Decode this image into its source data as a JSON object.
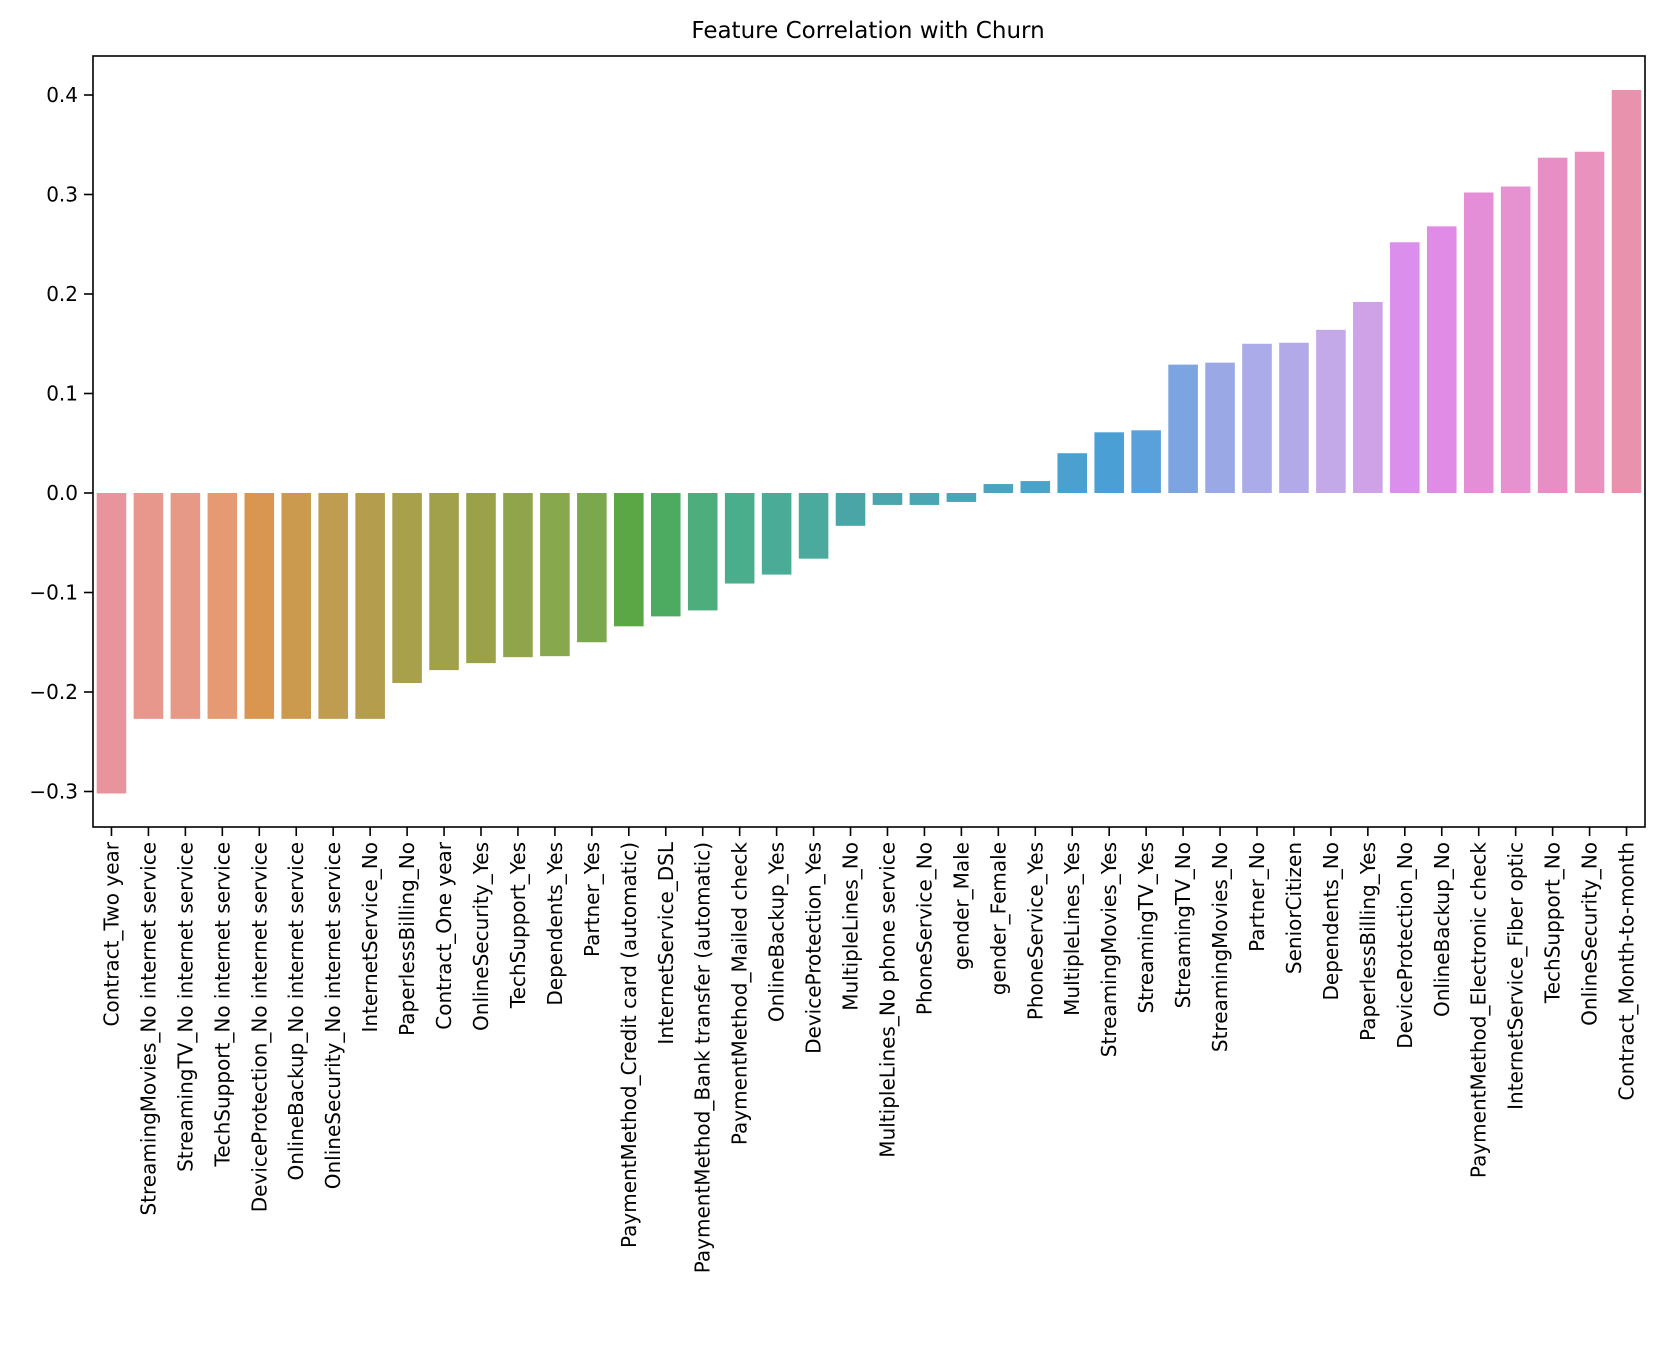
{
  "chart_data": {
    "type": "bar",
    "title": "Feature Correlation with Churn",
    "xlabel": "",
    "ylabel": "",
    "ylim": [
      -0.34,
      0.4
    ],
    "yticks": [
      {
        "value": -0.3,
        "label": "−0.3"
      },
      {
        "value": -0.2,
        "label": "−0.2"
      },
      {
        "value": -0.1,
        "label": "−0.1"
      },
      {
        "value": 0.0,
        "label": "0.0"
      },
      {
        "value": 0.1,
        "label": "0.1"
      },
      {
        "value": 0.2,
        "label": "0.2"
      },
      {
        "value": 0.3,
        "label": "0.3"
      },
      {
        "value": 0.4,
        "label": "0.4"
      }
    ],
    "grid": false,
    "legend": "none",
    "categories": [
      "Contract_Two year",
      "StreamingMovies_No internet service",
      "StreamingTV_No internet service",
      "TechSupport_No internet service",
      "DeviceProtection_No internet service",
      "OnlineBackup_No internet service",
      "OnlineSecurity_No internet service",
      "InternetService_No",
      "PaperlessBilling_No",
      "Contract_One year",
      "OnlineSecurity_Yes",
      "TechSupport_Yes",
      "Dependents_Yes",
      "Partner_Yes",
      "PaymentMethod_Credit card (automatic)",
      "InternetService_DSL",
      "PaymentMethod_Bank transfer (automatic)",
      "PaymentMethod_Mailed check",
      "OnlineBackup_Yes",
      "DeviceProtection_Yes",
      "MultipleLines_No",
      "MultipleLines_No phone service",
      "PhoneService_No",
      "gender_Male",
      "gender_Female",
      "PhoneService_Yes",
      "MultipleLines_Yes",
      "StreamingMovies_Yes",
      "StreamingTV_Yes",
      "StreamingTV_No",
      "StreamingMovies_No",
      "Partner_No",
      "SeniorCitizen",
      "Dependents_No",
      "PaperlessBilling_Yes",
      "DeviceProtection_No",
      "OnlineBackup_No",
      "PaymentMethod_Electronic check",
      "InternetService_Fiber optic",
      "TechSupport_No",
      "OnlineSecurity_No",
      "Contract_Month-to-month"
    ],
    "values": [
      -0.302,
      -0.227,
      -0.227,
      -0.227,
      -0.227,
      -0.227,
      -0.227,
      -0.227,
      -0.191,
      -0.178,
      -0.171,
      -0.165,
      -0.164,
      -0.15,
      -0.134,
      -0.124,
      -0.118,
      -0.091,
      -0.082,
      -0.066,
      -0.033,
      -0.012,
      -0.012,
      -0.009,
      0.009,
      0.012,
      0.04,
      0.061,
      0.063,
      0.129,
      0.131,
      0.15,
      0.151,
      0.164,
      0.192,
      0.252,
      0.268,
      0.302,
      0.308,
      0.337,
      0.343,
      0.405
    ],
    "colors": [
      "#e8949c",
      "#e8978d",
      "#e69986",
      "#e59a74",
      "#d99650",
      "#cc9a4e",
      "#bf9c4f",
      "#b49d4c",
      "#a9a04c",
      "#a2a14b",
      "#9aa149",
      "#90a44c",
      "#87a84c",
      "#7ca84d",
      "#5ca745",
      "#4dab61",
      "#4ead7d",
      "#4aae8d",
      "#4aab97",
      "#4aaa9e",
      "#4aa6a6",
      "#4aa6ac",
      "#4aa6b2",
      "#4aa5b8",
      "#4aa4c0",
      "#4aa3cb",
      "#4aa1cf",
      "#4a9fd4",
      "#5aa1db",
      "#7ba4e0",
      "#9aa9e6",
      "#aaabe8",
      "#b2a9e8",
      "#c4a9e8",
      "#cfa2e8",
      "#dc8eec",
      "#e08be6",
      "#e48ed8",
      "#e691d0",
      "#e78fc4",
      "#e892bd",
      "#e892ad"
    ]
  }
}
